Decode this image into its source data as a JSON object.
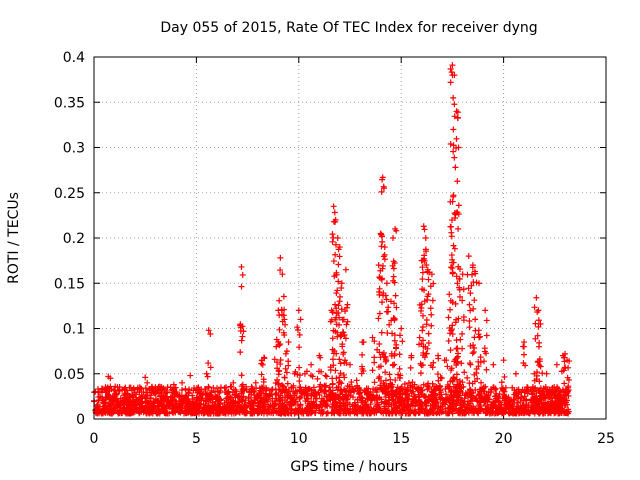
{
  "chart_data": {
    "type": "scatter",
    "title": "Day 055 of 2015, Rate Of TEC Index for receiver dyng",
    "xlabel": "GPS time / hours",
    "ylabel": "ROTI / TECUs",
    "xlim": [
      0,
      25
    ],
    "ylim": [
      0,
      0.4
    ],
    "xticks": [
      0,
      5,
      10,
      15,
      20,
      25
    ],
    "yticks": [
      0,
      0.05,
      0.1,
      0.15,
      0.2,
      0.25,
      0.3,
      0.35,
      0.4
    ],
    "grid": true,
    "marker": "+",
    "color": "#ff0000",
    "series": [
      {
        "name": "ROTI",
        "description": "dense background of points between roughly 0.005 and 0.035 TECU/min across 0–23.2 h, with isolated spikes",
        "x": [
          0.0,
          0.3,
          0.6,
          0.7,
          0.8,
          1.2,
          1.8,
          2.5,
          2.6,
          2.9,
          3.3,
          3.9,
          4.3,
          4.7,
          5.1,
          5.5,
          5.6,
          5.7,
          6.2,
          6.8,
          7.2,
          7.3,
          7.9,
          8.2,
          8.3,
          8.9,
          9.0,
          9.1,
          9.2,
          9.3,
          9.5,
          9.8,
          10.0,
          10.3,
          10.6,
          11.0,
          11.6,
          11.7,
          11.8,
          11.9,
          12.0,
          12.1,
          12.2,
          12.3,
          12.5,
          13.1,
          13.6,
          13.9,
          14.0,
          14.1,
          14.2,
          14.3,
          14.5,
          14.6,
          14.7,
          15.0,
          15.5,
          15.9,
          16.0,
          16.1,
          16.2,
          16.3,
          16.5,
          16.8,
          17.2,
          17.4,
          17.5,
          17.6,
          17.7,
          17.8,
          18.0,
          18.3,
          18.5,
          18.6,
          18.8,
          19.1,
          19.5,
          20.0,
          20.6,
          21.0,
          21.5,
          21.6,
          21.7,
          21.8,
          22.1,
          22.6,
          22.9,
          23.0,
          23.1,
          23.2
        ],
        "y": [
          0.02,
          0.025,
          0.03,
          0.047,
          0.045,
          0.018,
          0.02,
          0.046,
          0.04,
          0.03,
          0.035,
          0.038,
          0.04,
          0.048,
          0.035,
          0.05,
          0.098,
          0.057,
          0.035,
          0.04,
          0.168,
          0.097,
          0.04,
          0.065,
          0.068,
          0.08,
          0.12,
          0.178,
          0.16,
          0.11,
          0.085,
          0.05,
          0.12,
          0.05,
          0.06,
          0.07,
          0.12,
          0.235,
          0.22,
          0.2,
          0.19,
          0.15,
          0.11,
          0.165,
          0.06,
          0.085,
          0.09,
          0.17,
          0.205,
          0.267,
          0.19,
          0.15,
          0.13,
          0.2,
          0.21,
          0.1,
          0.07,
          0.09,
          0.175,
          0.213,
          0.2,
          0.165,
          0.16,
          0.07,
          0.065,
          0.24,
          0.391,
          0.38,
          0.34,
          0.3,
          0.16,
          0.18,
          0.17,
          0.163,
          0.15,
          0.12,
          0.06,
          0.065,
          0.05,
          0.085,
          0.05,
          0.134,
          0.12,
          0.105,
          0.05,
          0.06,
          0.07,
          0.072,
          0.065,
          0.064
        ]
      }
    ]
  }
}
